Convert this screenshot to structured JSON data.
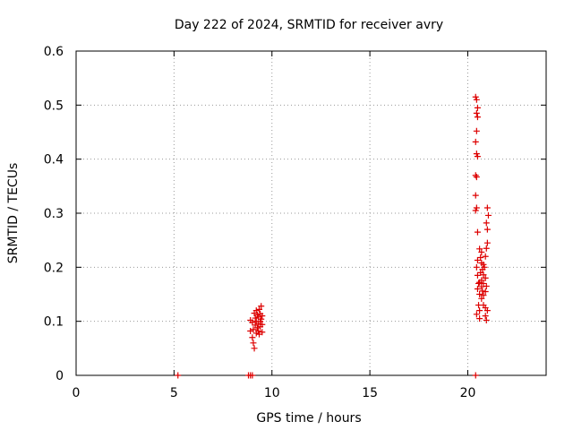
{
  "chart_data": {
    "type": "scatter",
    "title": "Day 222 of 2024, SRMTID for receiver avry",
    "xlabel": "GPS time / hours",
    "ylabel": "SRMTID / TECUs",
    "xlim": [
      0,
      24
    ],
    "ylim": [
      0,
      0.6
    ],
    "xticks": [
      0,
      5,
      10,
      15,
      20
    ],
    "xtick_labels": [
      "0",
      "5",
      "10",
      "15",
      "20"
    ],
    "yticks": [
      0,
      0.1,
      0.2,
      0.3,
      0.4,
      0.5,
      0.6
    ],
    "ytick_labels": [
      "0",
      "0.1",
      "0.2",
      "0.3",
      "0.4",
      "0.5",
      "0.6"
    ],
    "grid": true,
    "marker": "+",
    "marker_color": "#dd0000",
    "series": [
      {
        "name": "",
        "points": [
          [
            5.2,
            0.0
          ],
          [
            8.8,
            0.0
          ],
          [
            8.9,
            0.0
          ],
          [
            9.0,
            0.0
          ],
          [
            20.4,
            0.0
          ],
          [
            8.9,
            0.102
          ],
          [
            8.9,
            0.082
          ],
          [
            9.0,
            0.098
          ],
          [
            9.0,
            0.07
          ],
          [
            9.05,
            0.085
          ],
          [
            9.05,
            0.06
          ],
          [
            9.1,
            0.05
          ],
          [
            9.1,
            0.115
          ],
          [
            9.15,
            0.093
          ],
          [
            9.15,
            0.106
          ],
          [
            9.2,
            0.078
          ],
          [
            9.2,
            0.1
          ],
          [
            9.2,
            0.12
          ],
          [
            9.25,
            0.088
          ],
          [
            9.25,
            0.112
          ],
          [
            9.3,
            0.096
          ],
          [
            9.3,
            0.082
          ],
          [
            9.3,
            0.108
          ],
          [
            9.35,
            0.122
          ],
          [
            9.35,
            0.076
          ],
          [
            9.4,
            0.1
          ],
          [
            9.4,
            0.09
          ],
          [
            9.4,
            0.114
          ],
          [
            9.45,
            0.104
          ],
          [
            9.45,
            0.128
          ],
          [
            9.5,
            0.08
          ],
          [
            9.5,
            0.11
          ],
          [
            9.5,
            0.094
          ],
          [
            20.4,
            0.515
          ],
          [
            20.45,
            0.51
          ],
          [
            20.5,
            0.495
          ],
          [
            20.45,
            0.485
          ],
          [
            20.5,
            0.478
          ],
          [
            20.45,
            0.452
          ],
          [
            20.4,
            0.432
          ],
          [
            20.45,
            0.41
          ],
          [
            20.5,
            0.405
          ],
          [
            20.4,
            0.37
          ],
          [
            20.45,
            0.367
          ],
          [
            20.4,
            0.333
          ],
          [
            20.45,
            0.31
          ],
          [
            20.4,
            0.305
          ],
          [
            20.5,
            0.265
          ],
          [
            20.5,
            0.213
          ],
          [
            20.45,
            0.2
          ],
          [
            20.5,
            0.185
          ],
          [
            20.55,
            0.17
          ],
          [
            20.5,
            0.16
          ],
          [
            20.6,
            0.15
          ],
          [
            20.55,
            0.13
          ],
          [
            20.6,
            0.12
          ],
          [
            20.45,
            0.113
          ],
          [
            20.6,
            0.105
          ],
          [
            20.6,
            0.234
          ],
          [
            20.7,
            0.228
          ],
          [
            20.65,
            0.218
          ],
          [
            20.7,
            0.208
          ],
          [
            20.8,
            0.205
          ],
          [
            20.75,
            0.196
          ],
          [
            20.65,
            0.19
          ],
          [
            20.8,
            0.186
          ],
          [
            20.7,
            0.176
          ],
          [
            20.6,
            0.172
          ],
          [
            20.8,
            0.17
          ],
          [
            20.7,
            0.164
          ],
          [
            20.75,
            0.156
          ],
          [
            20.8,
            0.148
          ],
          [
            20.7,
            0.142
          ],
          [
            20.8,
            0.13
          ],
          [
            20.9,
            0.125
          ],
          [
            20.9,
            0.11
          ],
          [
            20.85,
            0.2
          ],
          [
            20.9,
            0.22
          ],
          [
            20.95,
            0.235
          ],
          [
            20.9,
            0.18
          ],
          [
            20.95,
            0.165
          ],
          [
            20.9,
            0.155
          ],
          [
            21.0,
            0.31
          ],
          [
            21.05,
            0.296
          ],
          [
            20.95,
            0.282
          ],
          [
            21.0,
            0.27
          ],
          [
            21.0,
            0.245
          ],
          [
            21.0,
            0.12
          ],
          [
            20.95,
            0.102
          ]
        ]
      }
    ]
  }
}
